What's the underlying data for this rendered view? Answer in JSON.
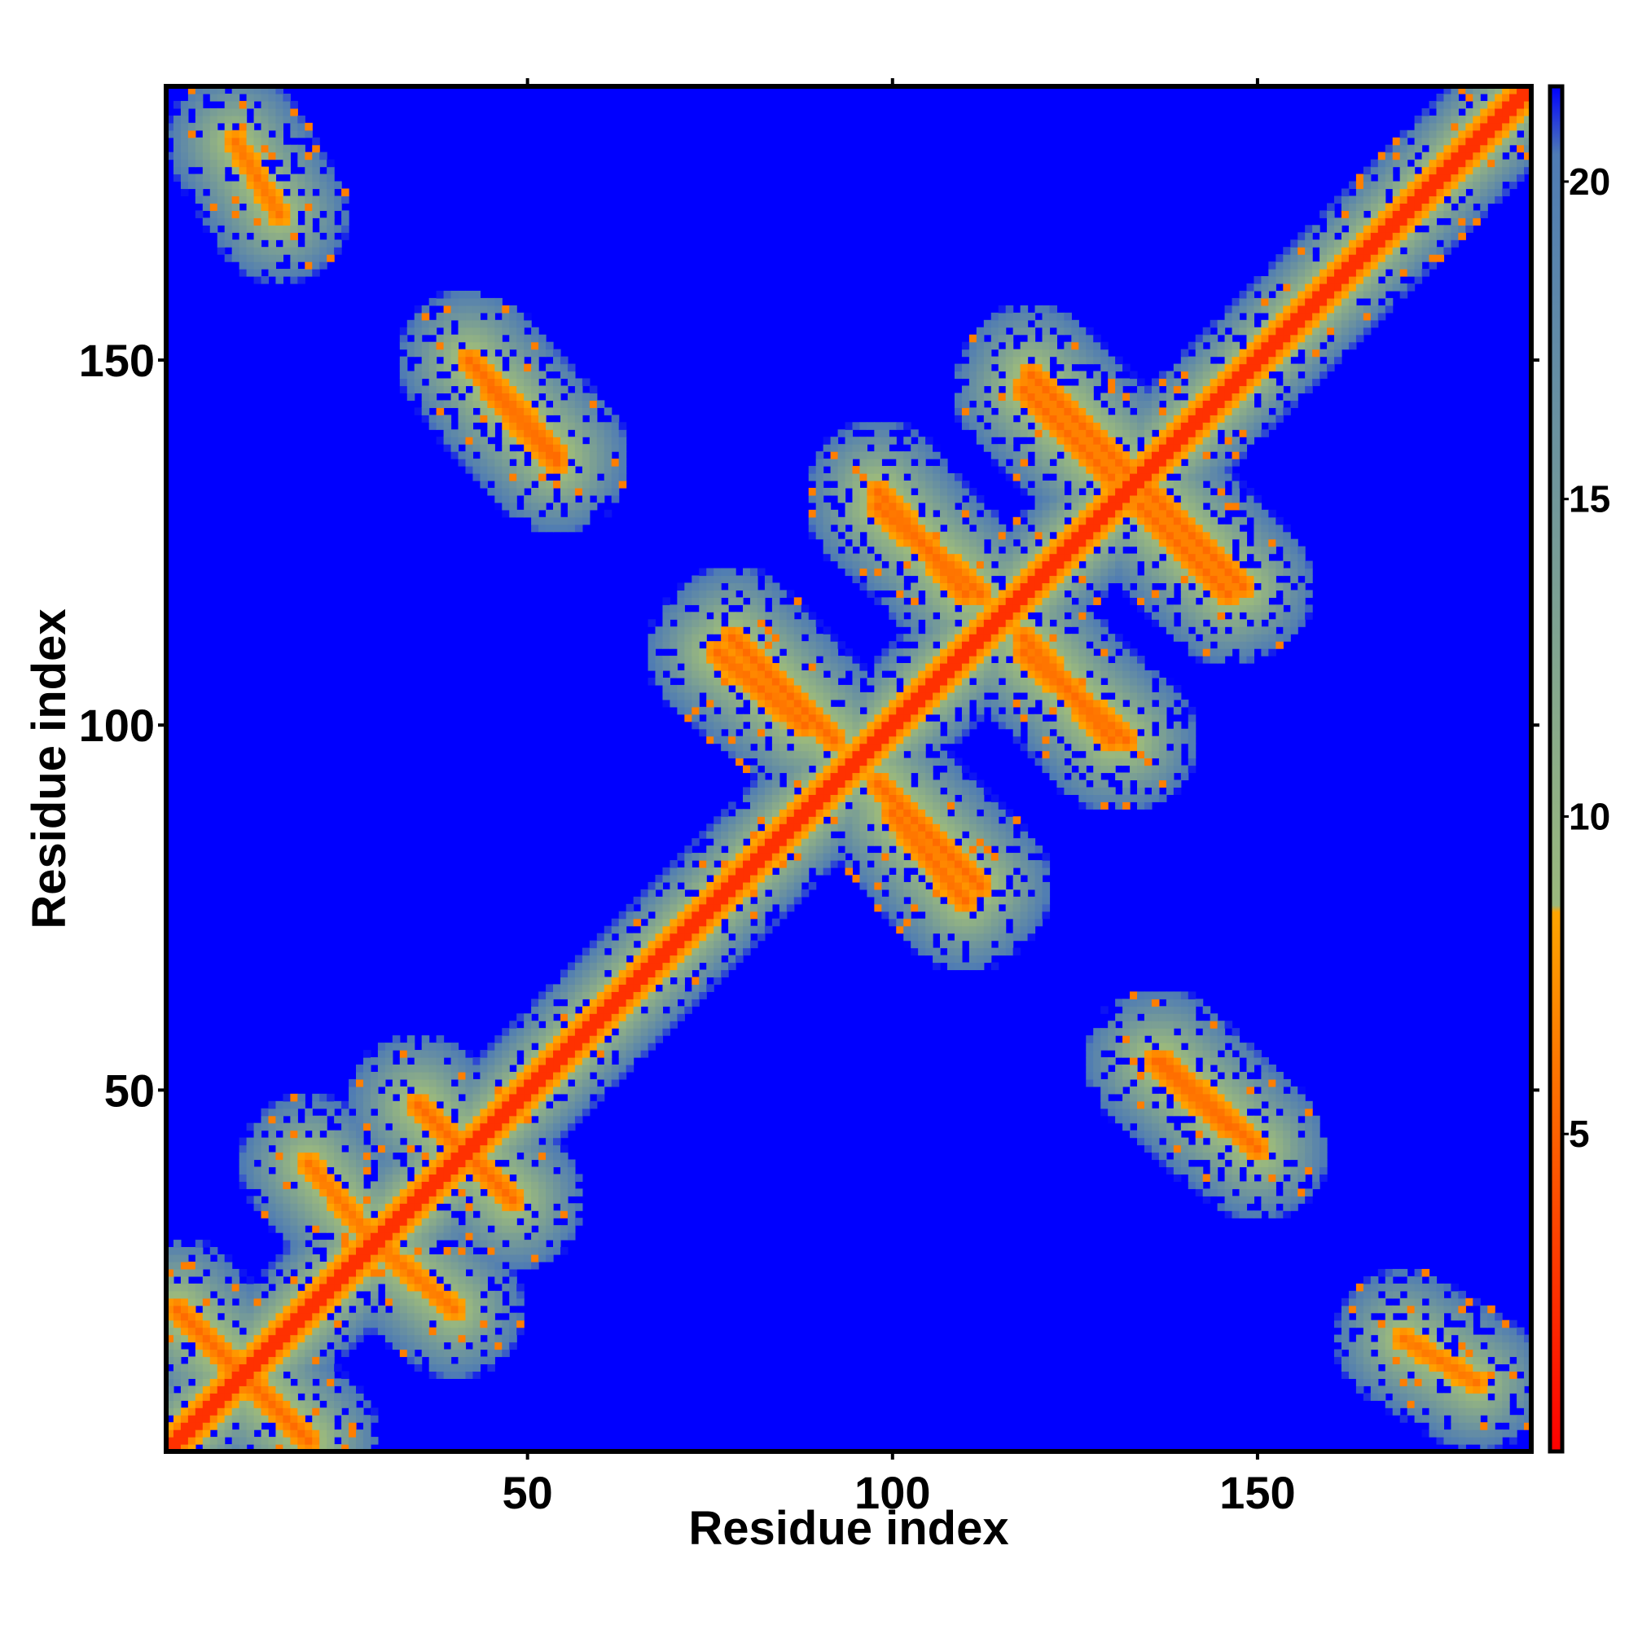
{
  "chart_data": {
    "type": "heatmap",
    "title": "",
    "xlabel": "Residue index",
    "ylabel": "Residue index",
    "xlim": [
      1,
      187
    ],
    "ylim": [
      1,
      187
    ],
    "x_ticks": [
      50,
      100,
      150
    ],
    "y_ticks": [
      50,
      100,
      150
    ],
    "colorbar": {
      "range": [
        0,
        21.5
      ],
      "ticks": [
        5,
        10,
        15,
        20
      ],
      "colormap": [
        {
          "value": 0,
          "color": "#ff0000"
        },
        {
          "value": 8.5,
          "color": "#ffa500"
        },
        {
          "value": 8.6,
          "color": "#9bb97d"
        },
        {
          "value": 20.5,
          "color": "#4e7bb4"
        },
        {
          "value": 21.5,
          "color": "#0000ff"
        }
      ]
    },
    "value_description": "symmetric residue-residue distance map; near-diagonal values low (red), far pairs saturated (blue)",
    "features": [
      {
        "kind": "diagonal",
        "from": 1,
        "to": 187,
        "value": 3.8
      },
      {
        "kind": "antiparallel",
        "a": [
          35,
          45
        ],
        "b": [
          38,
          48
        ],
        "value": 5.5
      },
      {
        "kind": "antiparallel",
        "a": [
          8,
          20
        ],
        "b": [
          2,
          14
        ],
        "value": 5.5
      },
      {
        "kind": "antiparallel",
        "a": [
          20,
          30
        ],
        "b": [
          28,
          40
        ],
        "value": 6
      },
      {
        "kind": "antiparallel",
        "a": [
          42,
          54
        ],
        "b": [
          137,
          150
        ],
        "value": 5.5
      },
      {
        "kind": "antiparallel",
        "a": [
          76,
          88
        ],
        "b": [
          100,
          110
        ],
        "value": 5.5
      },
      {
        "kind": "antiparallel",
        "a": [
          98,
          112
        ],
        "b": [
          78,
          92
        ],
        "value": 5.5
      },
      {
        "kind": "antiparallel",
        "a": [
          98,
          110
        ],
        "b": [
          118,
          132
        ],
        "value": 5.5
      },
      {
        "kind": "antiparallel",
        "a": [
          119,
          133
        ],
        "b": [
          134,
          148
        ],
        "value": 5.5
      },
      {
        "kind": "antiparallel",
        "a": [
          134,
          146
        ],
        "b": [
          118,
          130
        ],
        "value": 5.5
      },
      {
        "kind": "antiparallel",
        "a": [
          136,
          146
        ],
        "b": [
          45,
          54
        ],
        "value": 5.5
      },
      {
        "kind": "antiparallel",
        "a": [
          118,
          130
        ],
        "b": [
          98,
          112
        ],
        "value": 5.5
      },
      {
        "kind": "antiparallel",
        "a": [
          170,
          180
        ],
        "b": [
          10,
          16
        ],
        "value": 6
      },
      {
        "kind": "antiparallel",
        "a": [
          10,
          16
        ],
        "b": [
          170,
          180
        ],
        "value": 6
      }
    ]
  }
}
